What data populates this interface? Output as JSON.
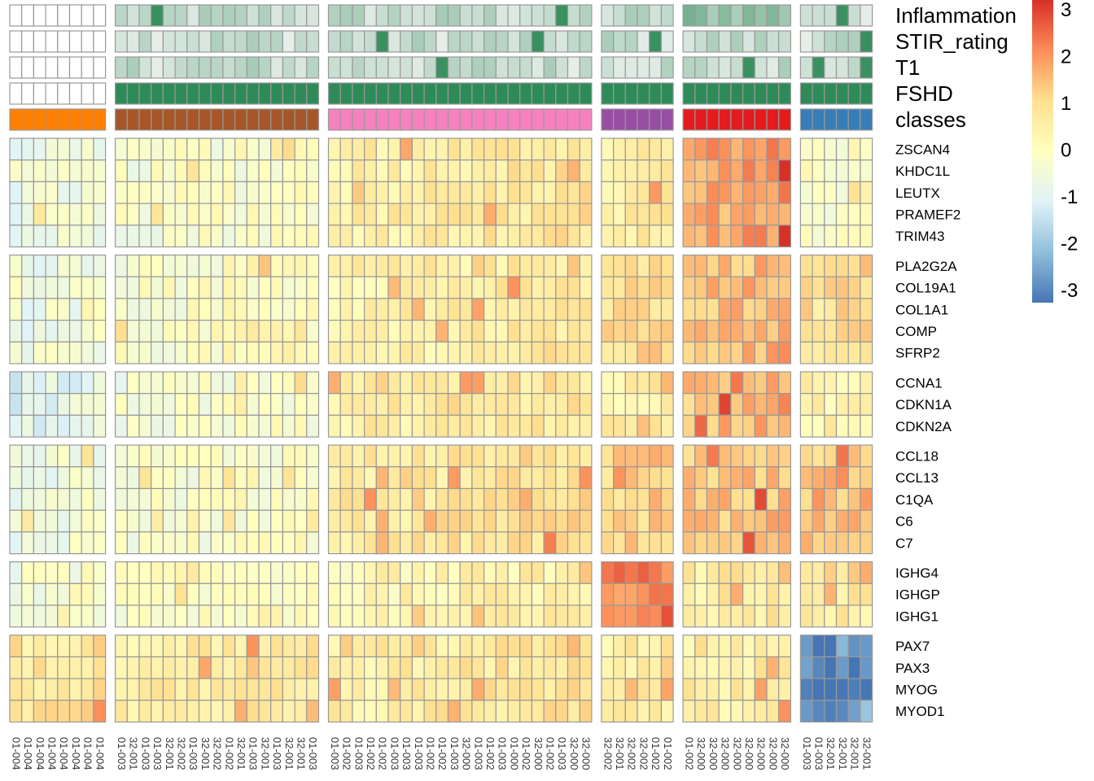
{
  "chart_data": {
    "type": "heatmap",
    "title": "",
    "color_scale": {
      "min": -3,
      "max": 3,
      "stops": [
        "#4575b4",
        "#91bfdb",
        "#e0f3f8",
        "#ffffbf",
        "#fee090",
        "#fc8d59",
        "#d73027"
      ],
      "ticks": [
        "3",
        "2",
        "1",
        "0",
        "-1",
        "-2",
        "-3"
      ]
    },
    "annotations": [
      {
        "name": "Inflammation",
        "type": "continuous"
      },
      {
        "name": "STIR_rating",
        "type": "continuous"
      },
      {
        "name": "T1",
        "type": "continuous"
      },
      {
        "name": "FSHD",
        "type": "binary"
      },
      {
        "name": "classes",
        "type": "categorical"
      }
    ],
    "classes": [
      {
        "n": 8,
        "color": "#ff7f00",
        "fshd": 0,
        "col_labels": [
          "01-004",
          "01-004",
          "01-004",
          "01-004",
          "01-004",
          "01-004",
          "01-004",
          "01-004"
        ]
      },
      {
        "n": 17,
        "color": "#a65628",
        "fshd": 1,
        "col_labels": [
          "01-003",
          "32-001",
          "01-003",
          "01-003",
          "32-001",
          "32-002",
          "01-003",
          "32-001",
          "32-002",
          "01-002",
          "32-001",
          "01-003",
          "32-001",
          "01-003",
          "32-001",
          "32-001",
          "01-003"
        ]
      },
      {
        "n": 22,
        "color": "#f781bf",
        "fshd": 1,
        "col_labels": [
          "01-003",
          "01-002",
          "01-003",
          "01-002",
          "01-002",
          "01-003",
          "01-003",
          "01-003",
          "01-002",
          "01-002",
          "01-003",
          "32-000",
          "01-003",
          "01-002",
          "01-003",
          "01-000",
          "01-002",
          "32-000",
          "01-002",
          "01-003",
          "32-000",
          "32-000"
        ]
      },
      {
        "n": 6,
        "color": "#984ea3",
        "fshd": 1,
        "col_labels": [
          "32-002",
          "32-001",
          "32-002",
          "32-002",
          "01-002",
          "01-002"
        ]
      },
      {
        "n": 9,
        "color": "#e41a1c",
        "fshd": 1,
        "col_labels": [
          "01-002",
          "32-000",
          "32-000",
          "32-000",
          "32-000",
          "32-000",
          "32-000",
          "32-000",
          "32-000"
        ]
      },
      {
        "n": 6,
        "color": "#377eb8",
        "fshd": 1,
        "col_labels": [
          "01-003",
          "01-003",
          "32-001",
          "32-001",
          "32-001",
          "32-001"
        ]
      }
    ],
    "gene_groups": [
      {
        "genes": [
          "ZSCAN4",
          "KHDC1L",
          "LEUTX",
          "PRAMEF2",
          "TRIM43"
        ],
        "class_means": [
          -0.7,
          -0.3,
          0.5,
          0.4,
          1.6,
          -0.2
        ]
      },
      {
        "genes": [
          "PLA2G2A",
          "COL19A1",
          "COL1A1",
          "COMP",
          "SFRP2"
        ],
        "class_means": [
          -0.6,
          -0.2,
          0.4,
          0.8,
          1.3,
          0.8
        ]
      },
      {
        "genes": [
          "CCNA1",
          "CDKN1A",
          "CDKN2A"
        ],
        "class_means": [
          -1.0,
          -0.4,
          0.5,
          0.4,
          1.4,
          0.3
        ]
      },
      {
        "genes": [
          "CCL18",
          "CCL13",
          "C1QA",
          "C6",
          "C7"
        ],
        "class_means": [
          -0.6,
          -0.3,
          0.6,
          1.0,
          1.2,
          1.2
        ]
      },
      {
        "genes": [
          "IGHG4",
          "IGHGP",
          "IGHG1"
        ],
        "class_means": [
          -0.4,
          -0.2,
          0.2,
          2.0,
          0.5,
          0.4
        ]
      },
      {
        "genes": [
          "PAX7",
          "PAX3",
          "MYOG",
          "MYOD1"
        ],
        "class_means": [
          0.6,
          0.5,
          0.5,
          0.4,
          0.4,
          -2.8
        ]
      }
    ]
  }
}
